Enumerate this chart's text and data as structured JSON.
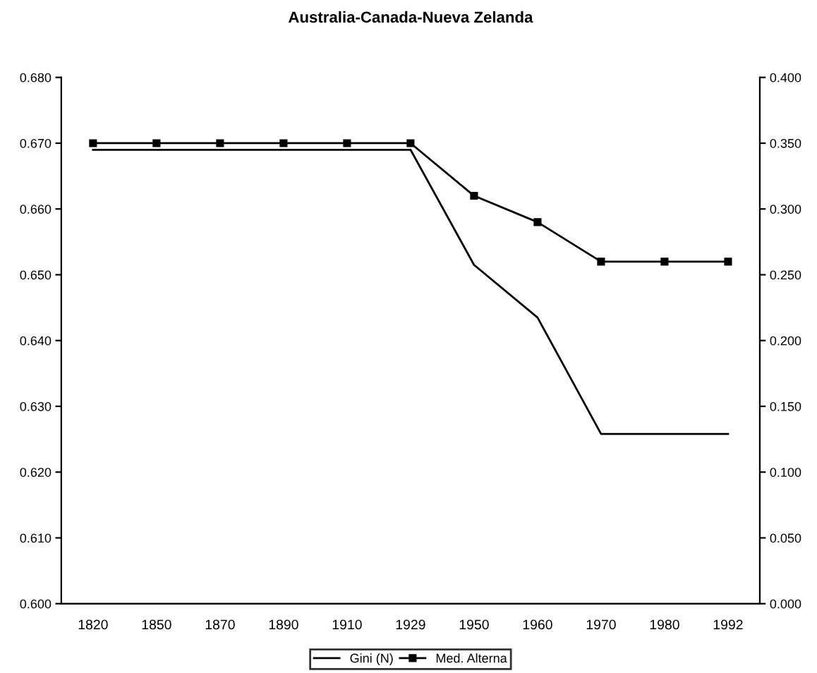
{
  "chart_data": {
    "type": "line",
    "title": "Australia-Canada-Nueva Zelanda",
    "categories": [
      "1820",
      "1850",
      "1870",
      "1890",
      "1910",
      "1929",
      "1950",
      "1960",
      "1970",
      "1980",
      "1992"
    ],
    "series": [
      {
        "name": "Gini (N)",
        "color": "#000000",
        "marker": "none",
        "values": [
          0.669,
          0.669,
          0.669,
          0.669,
          0.669,
          0.669,
          0.6515,
          0.6435,
          0.6258,
          0.6258,
          0.6258
        ]
      },
      {
        "name": "Med. Alterna",
        "color": "#000000",
        "marker": "square",
        "axis": "y2",
        "values": [
          0.35,
          0.35,
          0.35,
          0.35,
          0.35,
          0.35,
          0.31,
          0.29,
          0.26,
          0.26,
          0.26
        ]
      }
    ],
    "ylim": [
      0.6,
      0.68
    ],
    "yticks": [
      {
        "value": 0.6,
        "label": "0.600"
      },
      {
        "value": 0.61,
        "label": "0.610"
      },
      {
        "value": 0.62,
        "label": "0.620"
      },
      {
        "value": 0.63,
        "label": "0.630"
      },
      {
        "value": 0.64,
        "label": "0.640"
      },
      {
        "value": 0.65,
        "label": "0.650"
      },
      {
        "value": 0.66,
        "label": "0.660"
      },
      {
        "value": 0.67,
        "label": "0.670"
      },
      {
        "value": 0.68,
        "label": "0.680"
      }
    ],
    "y2lim": [
      0,
      0.4
    ],
    "y2ticks": [
      {
        "value": 0,
        "label": "0.000"
      },
      {
        "value": 0.05,
        "label": "0.050"
      },
      {
        "value": 0.1,
        "label": "0.100"
      },
      {
        "value": 0.15,
        "label": "0.150"
      },
      {
        "value": 0.2,
        "label": "0.200"
      },
      {
        "value": 0.25,
        "label": "0.250"
      },
      {
        "value": 0.3,
        "label": "0.300"
      },
      {
        "value": 0.35,
        "label": "0.350"
      },
      {
        "value": 0.4,
        "label": "0.400"
      }
    ],
    "grid": false,
    "legend": "bottom"
  }
}
